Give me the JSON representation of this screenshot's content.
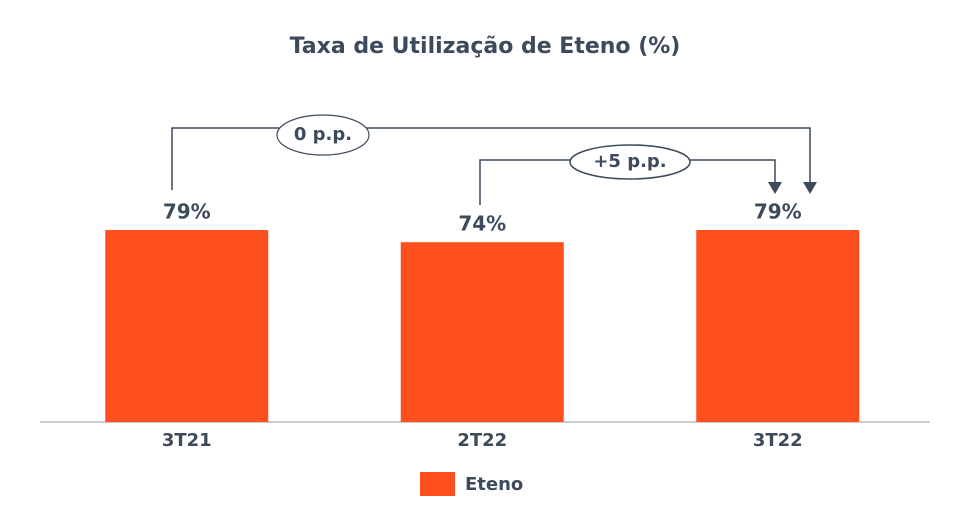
{
  "chart_data": {
    "type": "bar",
    "title": "Taxa de Utilização de Eteno (%)",
    "categories": [
      "3T21",
      "2T22",
      "3T22"
    ],
    "series": [
      {
        "name": "Eteno",
        "color": "#ff4f1f",
        "values": [
          79,
          74,
          79
        ],
        "value_labels": [
          "79%",
          "74%",
          "79%"
        ]
      }
    ],
    "annotations": [
      "0 p.p.",
      "+5 p.p."
    ]
  }
}
